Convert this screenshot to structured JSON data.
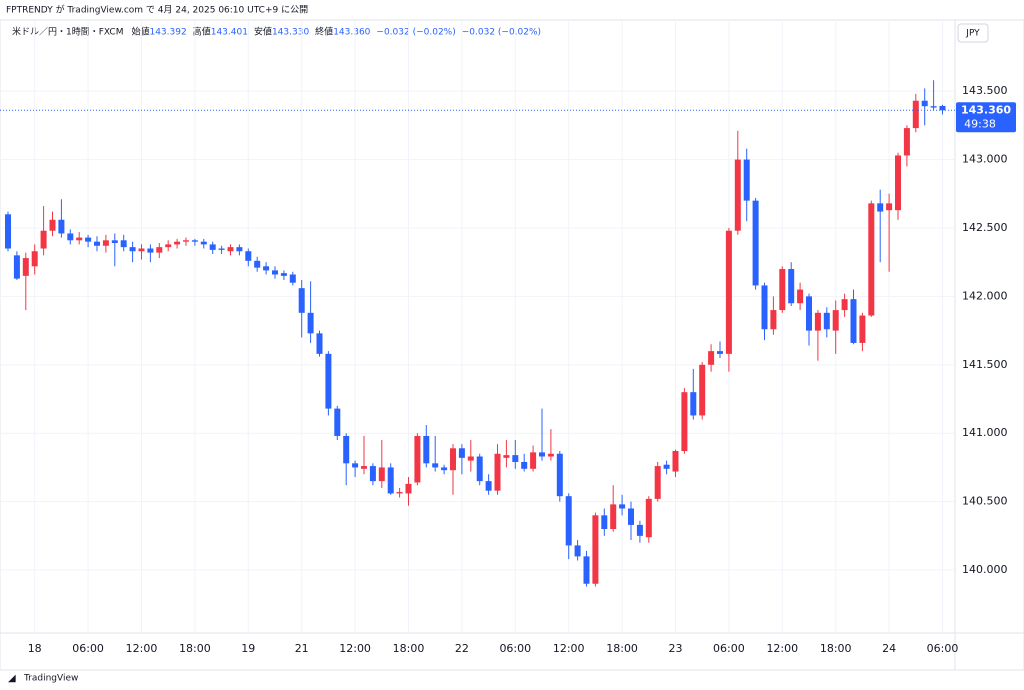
{
  "header": "FPTRENDY が TradingView.com で 4月 24, 2025 06:10 UTC+9 に公開",
  "footer": "TradingView",
  "chart_data": {
    "type": "candlestick",
    "symbol": "米ドル／円・1時間・FXCM",
    "legend": [
      {
        "label": "始値",
        "value": "143.392"
      },
      {
        "label": "高値",
        "value": "143.401"
      },
      {
        "label": "安値",
        "value": "143.330"
      },
      {
        "label": "終値",
        "value": "143.360"
      },
      {
        "label": "",
        "value": "−0.032 (−0.02%)"
      },
      {
        "label": "",
        "value": "−0.032 (−0.02%)"
      }
    ],
    "currency": "JPY",
    "last_price_label": "143.360",
    "countdown": "49:38",
    "up_color": "#f23645",
    "down_color": "#2962ff",
    "categories": [
      null,
      null,
      null,
      "18",
      null,
      null,
      null,
      null,
      null,
      "06:00",
      null,
      null,
      null,
      null,
      null,
      "12:00",
      null,
      null,
      null,
      null,
      null,
      "18:00",
      null,
      null,
      null,
      null,
      null,
      "19",
      null,
      null,
      null,
      null,
      null,
      "21",
      null,
      null,
      null,
      null,
      null,
      "12:00",
      null,
      null,
      null,
      null,
      null,
      "18:00",
      null,
      null,
      null,
      null,
      null,
      "22",
      null,
      null,
      null,
      null,
      null,
      "06:00",
      null,
      null,
      null,
      null,
      null,
      "12:00",
      null,
      null,
      null,
      null,
      null,
      "18:00",
      null,
      null,
      null,
      null,
      null,
      "23",
      null,
      null,
      null,
      null,
      null,
      "06:00",
      null,
      null,
      null,
      null,
      null,
      "12:00",
      null,
      null,
      null,
      null,
      null,
      "18:00",
      null,
      null,
      null,
      null,
      null,
      "24",
      null,
      null,
      null,
      null,
      null,
      "06:00"
    ],
    "open": [
      142.6,
      142.3,
      142.15,
      142.22,
      142.35,
      142.48,
      142.56,
      142.46,
      142.41,
      142.43,
      142.4,
      142.37,
      142.41,
      142.41,
      142.36,
      142.33,
      142.35,
      142.32,
      142.36,
      142.38,
      142.4,
      142.41,
      142.4,
      142.38,
      142.35,
      142.33,
      142.36,
      142.33,
      142.26,
      142.22,
      142.19,
      142.17,
      142.16,
      142.06,
      141.88,
      141.73,
      141.58,
      141.18,
      140.98,
      140.78,
      140.74,
      140.76,
      140.65,
      140.75,
      140.56,
      140.56,
      140.64,
      140.98,
      140.78,
      140.75,
      140.73,
      140.89,
      140.8,
      140.83,
      140.65,
      140.58,
      140.82,
      140.84,
      140.79,
      140.74,
      140.86,
      140.83,
      140.85,
      140.54,
      140.18,
      140.1,
      139.9,
      140.4,
      140.3,
      140.48,
      140.45,
      140.33,
      140.24,
      140.52,
      140.77,
      140.72,
      140.87,
      141.3,
      141.13,
      141.5,
      141.6,
      141.58,
      142.48,
      143.0,
      142.7,
      142.08,
      141.76,
      141.9,
      142.2,
      141.95,
      142.0,
      141.75,
      141.88,
      141.75,
      141.9,
      141.98,
      141.66,
      141.86,
      142.68,
      142.63,
      142.63,
      143.03,
      143.23,
      143.43,
      143.39,
      143.392
    ],
    "high": [
      142.62,
      142.33,
      142.32,
      142.38,
      142.66,
      142.62,
      142.71,
      142.49,
      142.47,
      142.45,
      142.44,
      142.45,
      142.46,
      142.45,
      142.4,
      142.38,
      142.38,
      142.39,
      142.41,
      142.42,
      142.43,
      142.42,
      142.42,
      142.4,
      142.37,
      142.38,
      142.38,
      142.35,
      142.29,
      142.25,
      142.22,
      142.19,
      142.18,
      142.12,
      142.11,
      141.75,
      141.6,
      141.2,
      141.0,
      140.8,
      140.98,
      140.78,
      140.95,
      140.78,
      140.6,
      140.68,
      141.0,
      141.06,
      140.98,
      140.77,
      140.92,
      140.92,
      140.95,
      140.85,
      140.7,
      140.92,
      140.95,
      140.95,
      140.85,
      140.91,
      141.18,
      141.03,
      140.87,
      140.56,
      140.22,
      140.14,
      140.42,
      140.45,
      140.62,
      140.55,
      140.5,
      140.36,
      140.54,
      140.79,
      140.8,
      140.88,
      141.33,
      141.47,
      141.52,
      141.65,
      141.67,
      142.5,
      143.21,
      143.08,
      142.72,
      142.1,
      142.0,
      142.22,
      142.25,
      142.1,
      142.02,
      141.9,
      141.92,
      141.97,
      142.02,
      142.05,
      141.88,
      142.7,
      142.78,
      142.75,
      143.05,
      143.25,
      143.48,
      143.52,
      143.58,
      143.401
    ],
    "low": [
      142.33,
      142.12,
      141.9,
      142.16,
      142.3,
      142.44,
      142.43,
      142.38,
      142.38,
      142.36,
      142.33,
      142.32,
      142.22,
      142.33,
      142.25,
      142.27,
      142.25,
      142.28,
      142.33,
      142.35,
      142.37,
      142.37,
      142.35,
      142.31,
      142.31,
      142.3,
      142.3,
      142.22,
      142.18,
      142.16,
      142.13,
      142.12,
      142.08,
      141.7,
      141.66,
      141.56,
      141.13,
      140.95,
      140.62,
      140.68,
      140.7,
      140.62,
      140.6,
      140.55,
      140.53,
      140.47,
      140.62,
      140.75,
      140.72,
      140.7,
      140.55,
      140.7,
      140.72,
      140.62,
      140.55,
      140.55,
      140.75,
      140.74,
      140.72,
      140.72,
      140.8,
      140.8,
      140.5,
      140.08,
      140.07,
      139.88,
      139.88,
      140.25,
      140.28,
      140.4,
      140.22,
      140.2,
      140.2,
      140.5,
      140.7,
      140.68,
      140.85,
      141.1,
      141.1,
      141.45,
      141.55,
      141.45,
      142.45,
      142.55,
      142.05,
      141.68,
      141.72,
      141.88,
      141.93,
      141.9,
      141.64,
      141.53,
      141.7,
      141.58,
      141.85,
      141.65,
      141.6,
      141.85,
      142.25,
      142.18,
      142.56,
      142.95,
      143.2,
      143.25,
      143.36,
      143.33
    ],
    "close": [
      142.35,
      142.13,
      142.28,
      142.33,
      142.48,
      142.56,
      142.46,
      142.41,
      142.43,
      142.4,
      142.37,
      142.41,
      142.39,
      142.36,
      142.33,
      142.35,
      142.32,
      142.36,
      142.38,
      142.4,
      142.41,
      142.4,
      142.38,
      142.34,
      142.34,
      142.36,
      142.33,
      142.26,
      142.21,
      142.19,
      142.16,
      142.15,
      142.1,
      141.88,
      141.73,
      141.58,
      141.18,
      140.98,
      140.78,
      140.75,
      140.76,
      140.65,
      140.75,
      140.56,
      140.57,
      140.63,
      140.98,
      140.78,
      140.75,
      140.73,
      140.89,
      140.82,
      140.83,
      140.65,
      140.58,
      140.85,
      140.84,
      140.79,
      140.74,
      140.86,
      140.83,
      140.85,
      140.54,
      140.18,
      140.1,
      139.9,
      140.4,
      140.3,
      140.48,
      140.45,
      140.33,
      140.25,
      140.52,
      140.76,
      140.74,
      140.87,
      141.3,
      141.13,
      141.5,
      141.6,
      141.58,
      142.48,
      143.0,
      142.7,
      142.08,
      141.76,
      141.9,
      142.2,
      141.95,
      142.05,
      141.75,
      141.88,
      141.76,
      141.9,
      141.98,
      141.66,
      141.86,
      142.68,
      142.62,
      142.68,
      143.03,
      143.23,
      143.43,
      143.39,
      143.38,
      143.36
    ],
    "ylim": [
      139.54,
      144.02
    ],
    "yticks": [
      {
        "value": 140,
        "label": "140.000"
      },
      {
        "value": 140.5,
        "label": "140.500"
      },
      {
        "value": 141,
        "label": "141.000"
      },
      {
        "value": 141.5,
        "label": "141.500"
      },
      {
        "value": 142,
        "label": "142.000"
      },
      {
        "value": 142.5,
        "label": "142.500"
      },
      {
        "value": 143,
        "label": "143.000"
      },
      {
        "value": 143.5,
        "label": "143.500"
      }
    ],
    "grid": true
  }
}
